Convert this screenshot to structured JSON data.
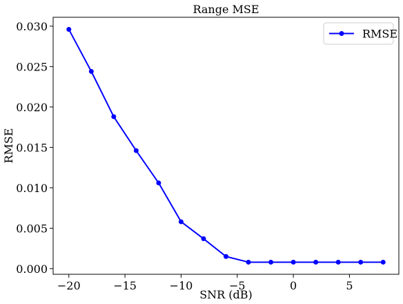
{
  "chart_data": {
    "type": "line",
    "title": "Range MSE",
    "xlabel": "SNR (dB)",
    "ylabel": "RMSE",
    "xlim": [
      -21.4,
      9.4
    ],
    "ylim": [
      -0.0007,
      0.0311
    ],
    "xticks": [
      -20,
      -15,
      -10,
      -5,
      0,
      5
    ],
    "xtick_labels": [
      "−20",
      "−15",
      "−10",
      "−5",
      "0",
      "5"
    ],
    "yticks": [
      0.0,
      0.005,
      0.01,
      0.015,
      0.02,
      0.025,
      0.03
    ],
    "ytick_labels": [
      "0.000",
      "0.005",
      "0.010",
      "0.015",
      "0.020",
      "0.025",
      "0.030"
    ],
    "grid": false,
    "legend_position": "top-right",
    "series": [
      {
        "name": "RMSE",
        "color": "#0000ff",
        "marker": "circle",
        "x": [
          -20,
          -18,
          -16,
          -14,
          -12,
          -10,
          -8,
          -6,
          -4,
          -2,
          0,
          2,
          4,
          6,
          8
        ],
        "y": [
          0.0296,
          0.0244,
          0.0188,
          0.0146,
          0.0106,
          0.0058,
          0.0037,
          0.0015,
          0.0008,
          0.0008,
          0.0008,
          0.0008,
          0.0008,
          0.0008,
          0.0008
        ]
      }
    ]
  }
}
